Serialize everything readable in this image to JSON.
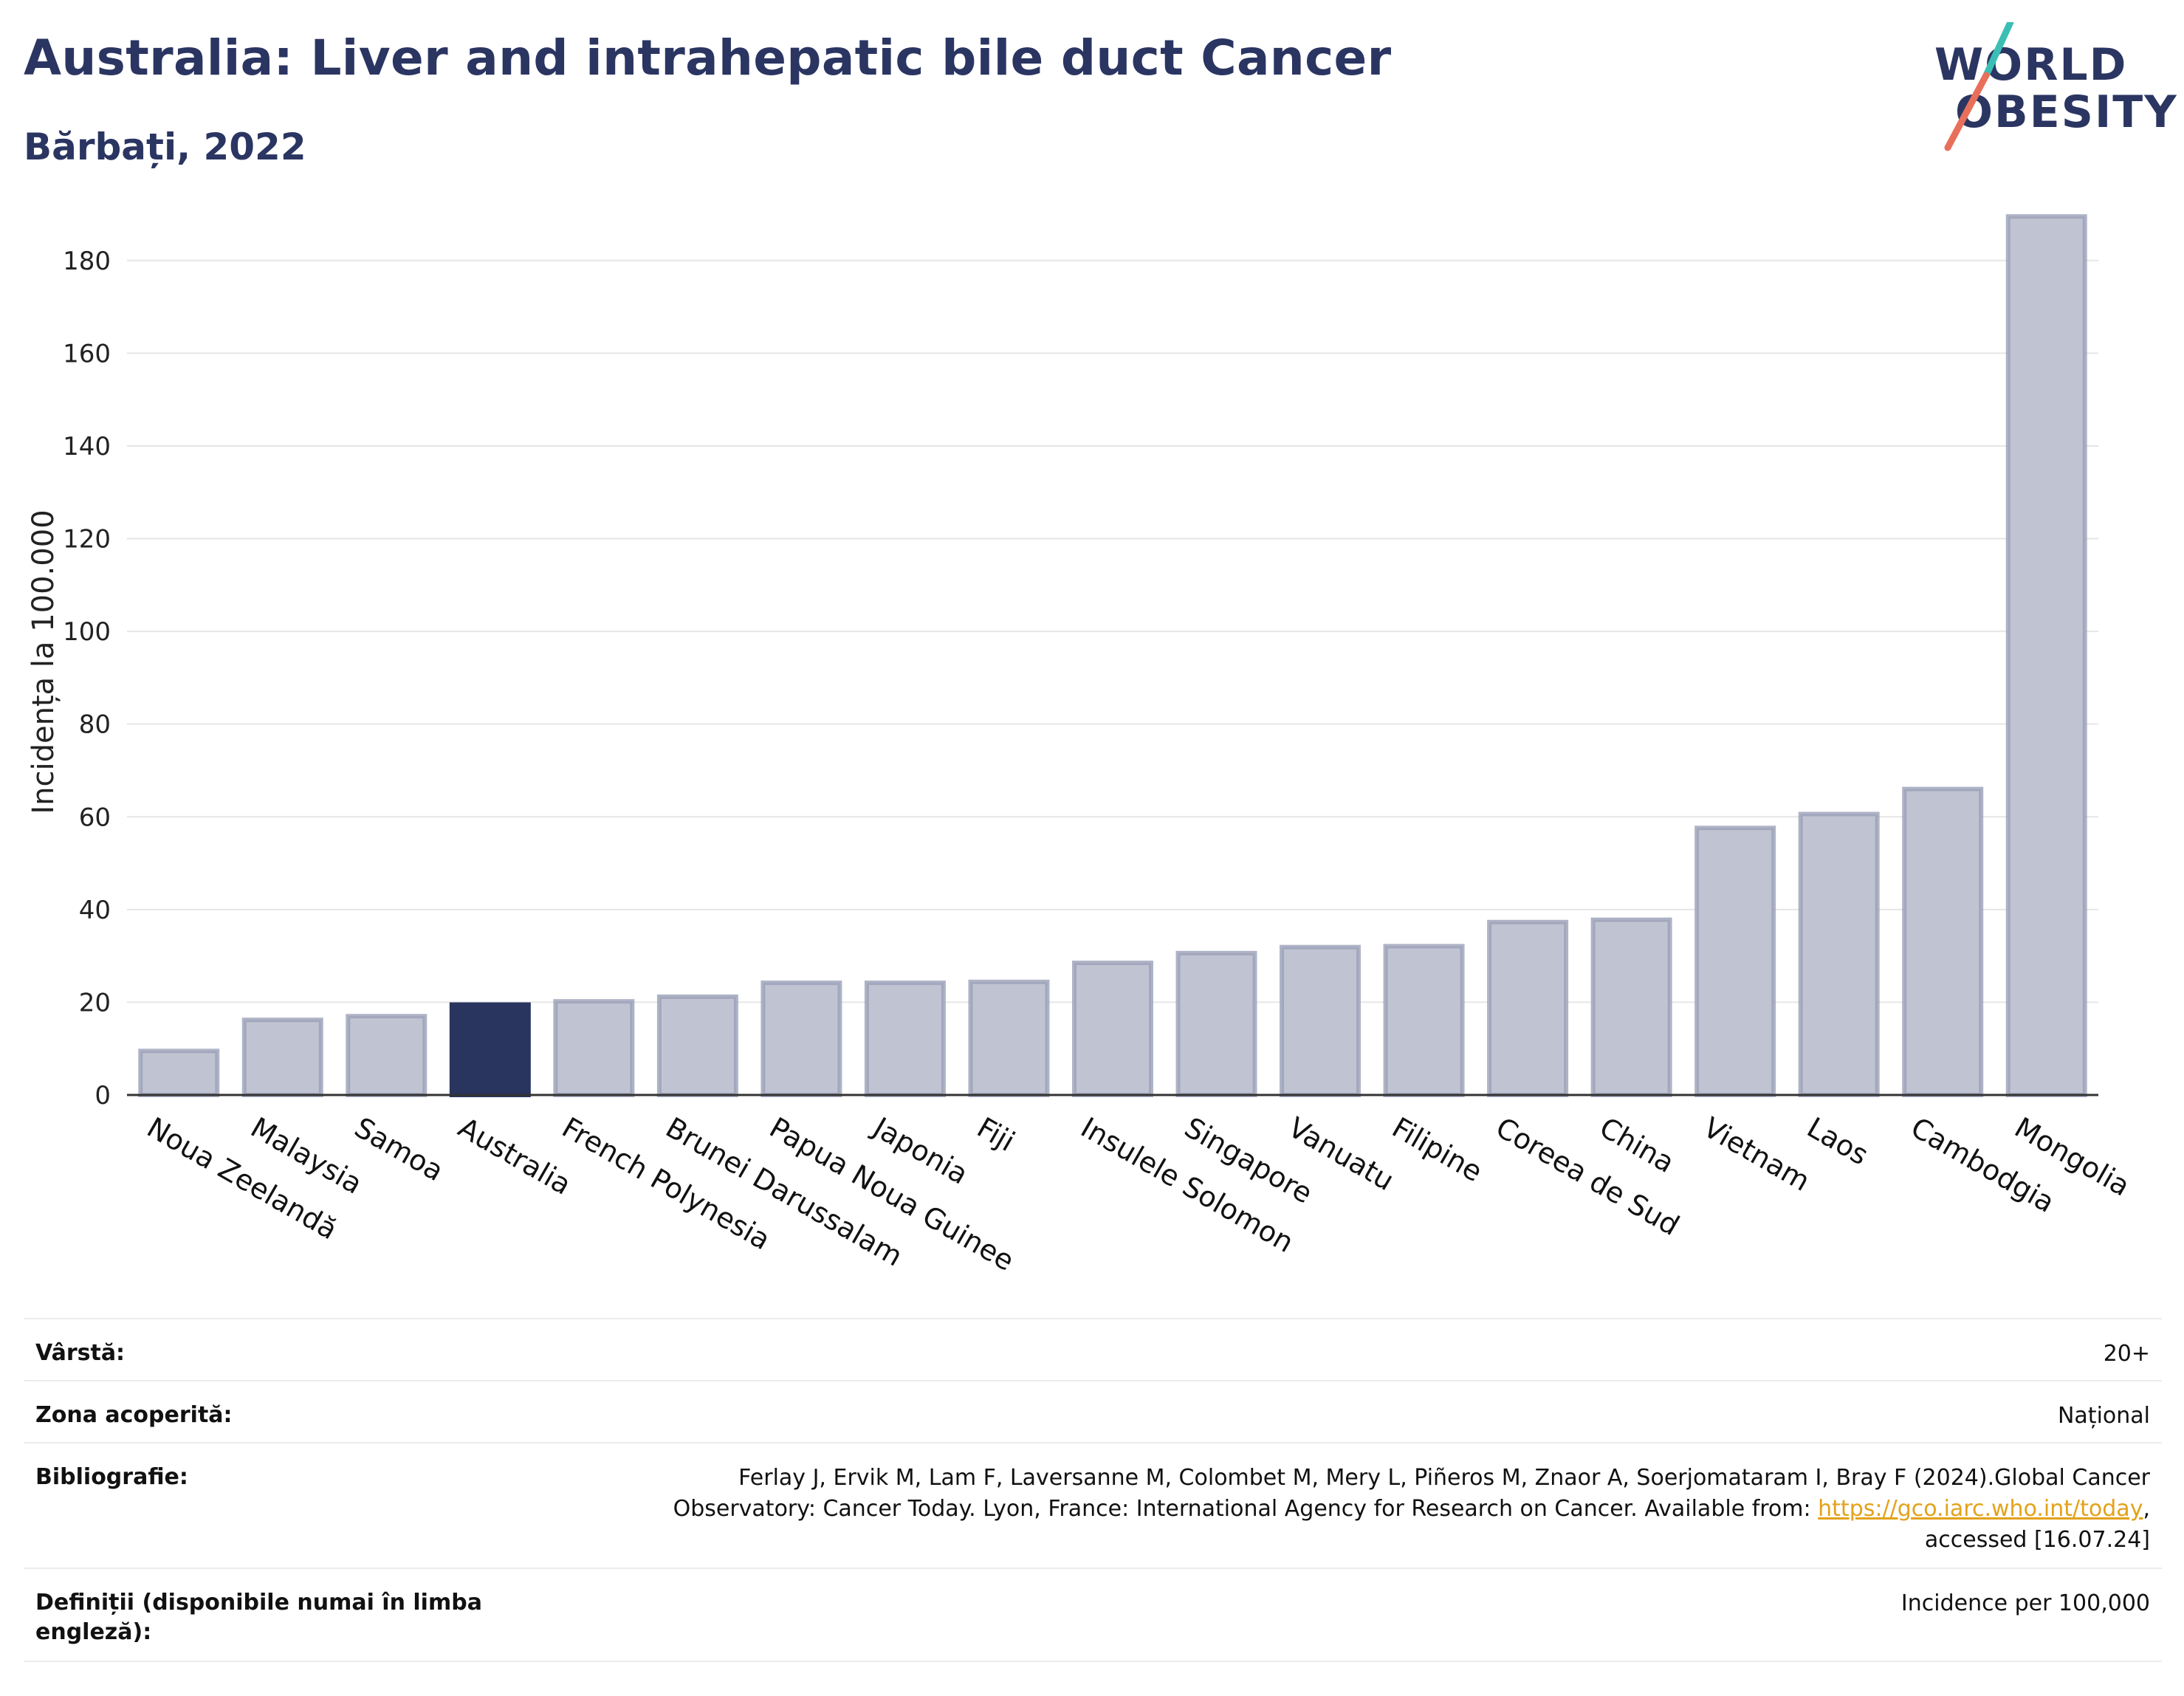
{
  "header": {
    "title": "Australia: Liver and intrahepatic bile duct Cancer",
    "subtitle": "Bărbați, 2022"
  },
  "logo": {
    "line1": "WORLD",
    "line2": "OBESITY",
    "colors": {
      "text": "#2b3562",
      "slash_top": "#3bbfb5",
      "slash_bottom": "#e8705a"
    }
  },
  "chart_data": {
    "type": "bar",
    "ylabel": "Incidența la 100.000",
    "xlabel": "",
    "ylim": [
      0,
      190
    ],
    "yticks": [
      0,
      20,
      40,
      60,
      80,
      100,
      120,
      140,
      160,
      180
    ],
    "grid": true,
    "highlight": "Australia",
    "colors": {
      "bar": "#c0c4d2",
      "bar_edge": "#9aa0b8",
      "highlight": "#29345f"
    },
    "categories": [
      "Noua Zeelandă",
      "Malaysia",
      "Samoa",
      "Australia",
      "French Polynesia",
      "Brunei Darussalam",
      "Papua Noua Guinee",
      "Japonia",
      "Fiji",
      "Insulele Solomon",
      "Singapore",
      "Vanuatu",
      "Filipine",
      "Coreea de Sud",
      "China",
      "Vietnam",
      "Laos",
      "Cambodgia",
      "Mongolia"
    ],
    "values": [
      9.5,
      16.2,
      17.0,
      19.5,
      20.2,
      21.2,
      24.2,
      24.2,
      24.4,
      28.5,
      30.6,
      31.9,
      32.1,
      37.3,
      37.8,
      57.6,
      60.6,
      66.0,
      189.5
    ]
  },
  "info": {
    "rows": [
      {
        "key": "Vârstă:",
        "value": "20+"
      },
      {
        "key": "Zona acoperită:",
        "value": "Național"
      },
      {
        "key": "Bibliografie:",
        "value_line1": "Ferlay J, Ervik M, Lam F, Laversanne M, Colombet M, Mery L, Piñeros M, Znaor A, Soerjomataram I, Bray F (2024).Global Cancer",
        "value_line2_pre": "Observatory: Cancer Today. Lyon, France: International Agency for Research on Cancer. Available from: ",
        "link": "https://gco.iarc.who.int/today",
        "value_line2_post": ",",
        "value_line3": "accessed [16.07.24]"
      },
      {
        "key": "Definiții (disponibile numai în limba engleză):",
        "value": "Incidence per 100,000"
      }
    ]
  }
}
